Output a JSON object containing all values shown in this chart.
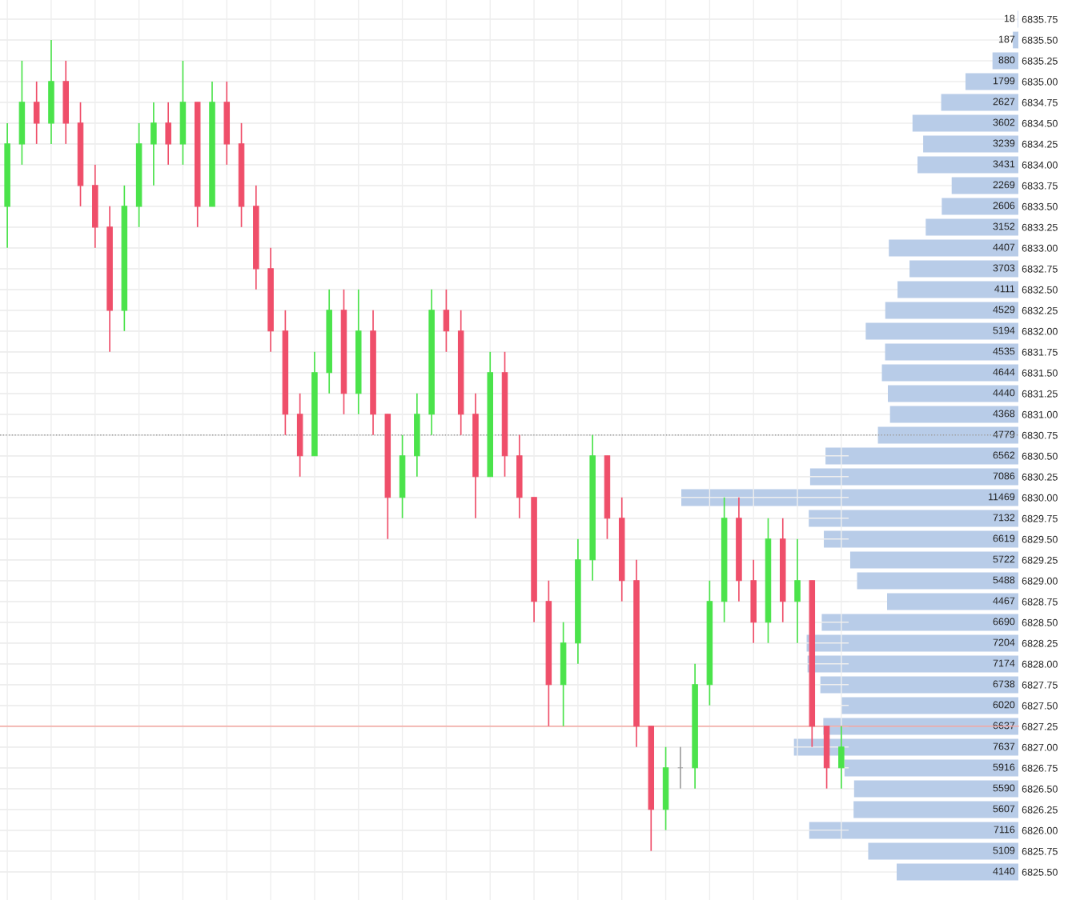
{
  "chart_data": [
    {
      "type": "candlestick",
      "categories": [
        null,
        null,
        null,
        null,
        null,
        null,
        null,
        null,
        null,
        null,
        null,
        null,
        null,
        null,
        null,
        null,
        null,
        null,
        null,
        null,
        null,
        null,
        null,
        null,
        null,
        null,
        null,
        null,
        null,
        null,
        null,
        null,
        null,
        null,
        null,
        null,
        null,
        null,
        null,
        null,
        null,
        null,
        null,
        null,
        null,
        null,
        null,
        null,
        null,
        null,
        null,
        null,
        null,
        null,
        null,
        null,
        null,
        null
      ],
      "ohlc": [
        [
          6833.5,
          6834.5,
          6833.0,
          6834.25
        ],
        [
          6834.25,
          6835.25,
          6834.0,
          6834.75
        ],
        [
          6834.75,
          6835.0,
          6834.25,
          6834.5
        ],
        [
          6834.5,
          6835.5,
          6834.25,
          6835.0
        ],
        [
          6835.0,
          6835.25,
          6834.25,
          6834.5
        ],
        [
          6834.5,
          6834.75,
          6833.5,
          6833.75
        ],
        [
          6833.75,
          6834.0,
          6833.0,
          6833.25
        ],
        [
          6833.25,
          6833.5,
          6831.75,
          6832.25
        ],
        [
          6832.25,
          6833.75,
          6832.0,
          6833.5
        ],
        [
          6833.5,
          6834.5,
          6833.25,
          6834.25
        ],
        [
          6834.25,
          6834.75,
          6833.75,
          6834.5
        ],
        [
          6834.5,
          6834.75,
          6834.0,
          6834.25
        ],
        [
          6834.25,
          6835.25,
          6834.0,
          6834.75
        ],
        [
          6834.75,
          6834.75,
          6833.25,
          6833.5
        ],
        [
          6833.5,
          6835.0,
          6833.5,
          6834.75
        ],
        [
          6834.75,
          6835.0,
          6834.0,
          6834.25
        ],
        [
          6834.25,
          6834.5,
          6833.25,
          6833.5
        ],
        [
          6833.5,
          6833.75,
          6832.5,
          6832.75
        ],
        [
          6832.75,
          6833.0,
          6831.75,
          6832.0
        ],
        [
          6832.0,
          6832.25,
          6830.75,
          6831.0
        ],
        [
          6831.0,
          6831.25,
          6830.25,
          6830.5
        ],
        [
          6830.5,
          6831.75,
          6830.5,
          6831.5
        ],
        [
          6831.5,
          6832.5,
          6831.25,
          6832.25
        ],
        [
          6832.25,
          6832.5,
          6831.0,
          6831.25
        ],
        [
          6831.25,
          6832.5,
          6831.0,
          6832.0
        ],
        [
          6832.0,
          6832.25,
          6830.75,
          6831.0
        ],
        [
          6831.0,
          6831.0,
          6829.5,
          6830.0
        ],
        [
          6830.0,
          6830.75,
          6829.75,
          6830.5
        ],
        [
          6830.5,
          6831.25,
          6830.25,
          6831.0
        ],
        [
          6831.0,
          6832.5,
          6830.75,
          6832.25
        ],
        [
          6832.25,
          6832.5,
          6831.75,
          6832.0
        ],
        [
          6832.0,
          6832.25,
          6830.75,
          6831.0
        ],
        [
          6831.0,
          6831.25,
          6829.75,
          6830.25
        ],
        [
          6830.25,
          6831.75,
          6830.25,
          6831.5
        ],
        [
          6831.5,
          6831.75,
          6830.25,
          6830.5
        ],
        [
          6830.5,
          6830.75,
          6829.75,
          6830.0
        ],
        [
          6830.0,
          6830.0,
          6828.5,
          6828.75
        ],
        [
          6828.75,
          6829.0,
          6827.25,
          6827.75
        ],
        [
          6827.75,
          6828.5,
          6827.25,
          6828.25
        ],
        [
          6828.25,
          6829.5,
          6828.0,
          6829.25
        ],
        [
          6829.25,
          6830.75,
          6829.0,
          6830.5
        ],
        [
          6830.5,
          6830.5,
          6829.5,
          6829.75
        ],
        [
          6829.75,
          6830.0,
          6828.75,
          6829.0
        ],
        [
          6829.0,
          6829.25,
          6827.0,
          6827.25
        ],
        [
          6827.25,
          6827.25,
          6825.75,
          6826.25
        ],
        [
          6826.25,
          6827.0,
          6826.0,
          6826.75
        ],
        [
          6826.75,
          6827.0,
          6826.5,
          6826.75
        ],
        [
          6826.75,
          6828.0,
          6826.5,
          6827.75
        ],
        [
          6827.75,
          6829.0,
          6827.5,
          6828.75
        ],
        [
          6828.75,
          6830.0,
          6828.5,
          6829.75
        ],
        [
          6829.75,
          6830.0,
          6828.75,
          6829.0
        ],
        [
          6829.0,
          6829.25,
          6828.25,
          6828.5
        ],
        [
          6828.5,
          6829.75,
          6828.25,
          6829.5
        ],
        [
          6829.5,
          6829.75,
          6828.5,
          6828.75
        ],
        [
          6828.75,
          6829.5,
          6828.25,
          6829.0
        ],
        [
          6829.0,
          6829.0,
          6827.0,
          6827.25
        ],
        [
          6827.25,
          6827.25,
          6826.5,
          6826.75
        ],
        [
          6826.75,
          6827.25,
          6826.5,
          6827.0
        ]
      ],
      "colors": [
        "#4be34b",
        "#4be34b",
        "#ef4f6a",
        "#4be34b",
        "#ef4f6a",
        "#ef4f6a",
        "#ef4f6a",
        "#ef4f6a",
        "#4be34b",
        "#4be34b",
        "#4be34b",
        "#ef4f6a",
        "#4be34b",
        "#ef4f6a",
        "#4be34b",
        "#ef4f6a",
        "#ef4f6a",
        "#ef4f6a",
        "#ef4f6a",
        "#ef4f6a",
        "#ef4f6a",
        "#4be34b",
        "#4be34b",
        "#ef4f6a",
        "#4be34b",
        "#ef4f6a",
        "#ef4f6a",
        "#4be34b",
        "#4be34b",
        "#4be34b",
        "#ef4f6a",
        "#ef4f6a",
        "#ef4f6a",
        "#4be34b",
        "#ef4f6a",
        "#ef4f6a",
        "#ef4f6a",
        "#ef4f6a",
        "#4be34b",
        "#4be34b",
        "#4be34b",
        "#ef4f6a",
        "#ef4f6a",
        "#ef4f6a",
        "#ef4f6a",
        "#4be34b",
        "#9e9e9e",
        "#4be34b",
        "#4be34b",
        "#4be34b",
        "#ef4f6a",
        "#ef4f6a",
        "#4be34b",
        "#ef4f6a",
        "#4be34b",
        "#ef4f6a",
        "#ef4f6a",
        "#4be34b"
      ],
      "ylim": [
        6825.16,
        6835.98
      ],
      "tick_labels": false,
      "grid": true,
      "yticks": [
        6835.75,
        6835.5,
        6835.25,
        6835.0,
        6834.75,
        6834.5,
        6834.25,
        6834.0,
        6833.75,
        6833.5,
        6833.25,
        6833.0,
        6832.75,
        6832.5,
        6832.25,
        6832.0,
        6831.75,
        6831.5,
        6831.25,
        6831.0,
        6830.75,
        6830.5,
        6830.25,
        6830.0,
        6829.75,
        6829.5,
        6829.25,
        6829.0,
        6828.75,
        6828.5,
        6828.25,
        6828.0,
        6827.75,
        6827.5,
        6827.25,
        6827.0,
        6826.75,
        6826.5,
        6826.25,
        6826.0,
        6825.75,
        6825.5
      ],
      "ref_lines": [
        {
          "axis": "y",
          "value": 6827.25,
          "color": "#f4a6a0",
          "line_style": "solid"
        },
        {
          "axis": "y",
          "value": 6830.75,
          "color": "#9e9e9e",
          "line_style": "dotted"
        }
      ]
    },
    {
      "type": "bar",
      "orientation": "horizontal",
      "color": "#b8cce8",
      "data_labels": true,
      "tick_labels": "y",
      "grid": "y",
      "categories": [
        "6835.75",
        "6835.50",
        "6835.25",
        "6835.00",
        "6834.75",
        "6834.50",
        "6834.25",
        "6834.00",
        "6833.75",
        "6833.50",
        "6833.25",
        "6833.00",
        "6832.75",
        "6832.50",
        "6832.25",
        "6832.00",
        "6831.75",
        "6831.50",
        "6831.25",
        "6831.00",
        "6830.75",
        "6830.50",
        "6830.25",
        "6830.00",
        "6829.75",
        "6829.50",
        "6829.25",
        "6829.00",
        "6828.75",
        "6828.50",
        "6828.25",
        "6828.00",
        "6827.75",
        "6827.50",
        "6827.25",
        "6827.00",
        "6826.75",
        "6826.50",
        "6826.25",
        "6826.00",
        "6825.75",
        "6825.50"
      ],
      "values": [
        18,
        187,
        880,
        1799,
        2627,
        3602,
        3239,
        3431,
        2269,
        2606,
        3152,
        4407,
        3703,
        4111,
        4529,
        5194,
        4535,
        4644,
        4440,
        4368,
        4779,
        6562,
        7086,
        11469,
        7132,
        6619,
        5722,
        5488,
        4467,
        6690,
        7204,
        7174,
        6738,
        6020,
        6637,
        7637,
        5916,
        5590,
        5607,
        7116,
        5109,
        4140
      ]
    }
  ]
}
